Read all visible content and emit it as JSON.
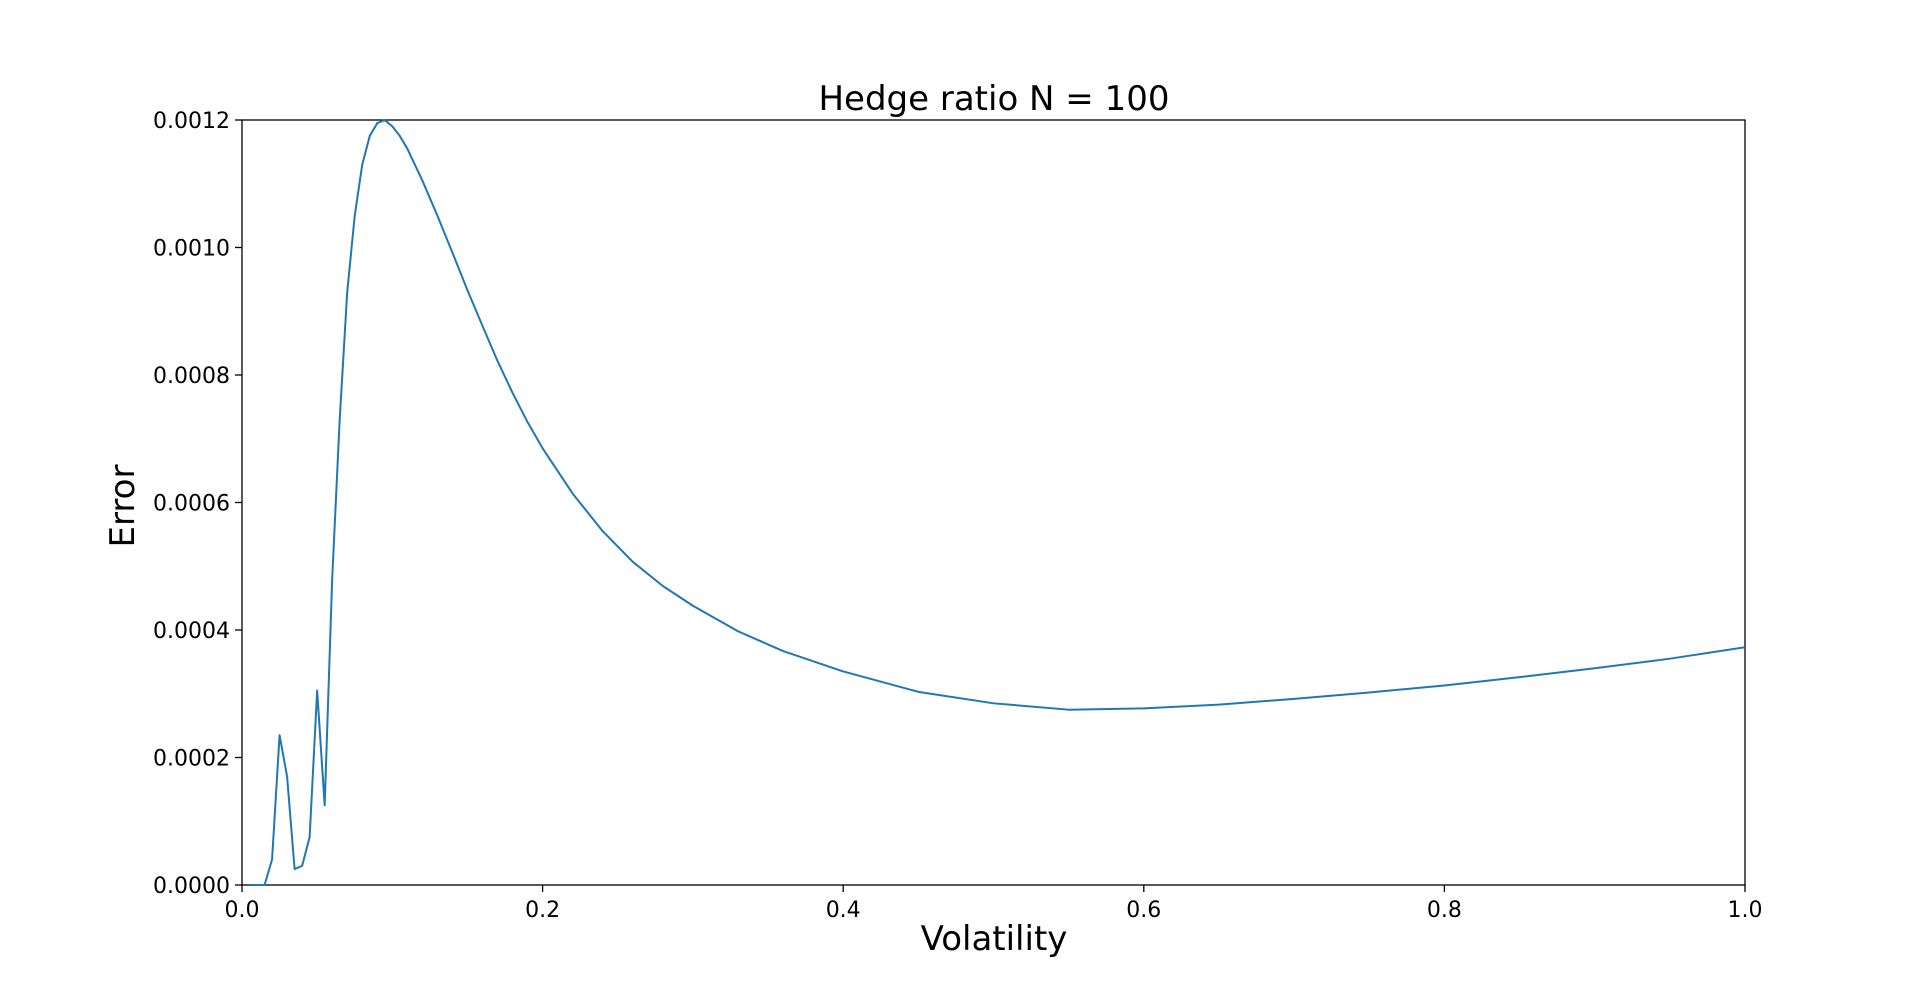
{
  "chart_data": {
    "type": "line",
    "title": "Hedge ratio N = 100",
    "xlabel": "Volatility",
    "ylabel": "Error",
    "xlim": [
      0.0,
      1.0
    ],
    "ylim": [
      0.0,
      0.0012
    ],
    "x_ticks": [
      "0.0",
      "0.2",
      "0.4",
      "0.6",
      "0.8",
      "1.0"
    ],
    "y_ticks": [
      "0.0000",
      "0.0002",
      "0.0004",
      "0.0006",
      "0.0008",
      "0.0010",
      "0.0012"
    ],
    "grid": false,
    "series": [
      {
        "color": "#1f77b4",
        "x": [
          0.005,
          0.01,
          0.015,
          0.02,
          0.025,
          0.03,
          0.035,
          0.04,
          0.045,
          0.05,
          0.055,
          0.06,
          0.065,
          0.07,
          0.075,
          0.08,
          0.085,
          0.09,
          0.095,
          0.1,
          0.105,
          0.11,
          0.12,
          0.13,
          0.14,
          0.15,
          0.16,
          0.17,
          0.18,
          0.19,
          0.2,
          0.22,
          0.24,
          0.26,
          0.28,
          0.3,
          0.33,
          0.36,
          0.4,
          0.45,
          0.5,
          0.55,
          0.6,
          0.65,
          0.7,
          0.75,
          0.8,
          0.85,
          0.9,
          0.95,
          1.0
        ],
        "y": [
          0.0,
          0.0,
          0.0,
          4e-05,
          0.000235,
          0.00017,
          2.5e-05,
          3e-05,
          7.5e-05,
          0.000305,
          0.000125,
          0.00048,
          0.00073,
          0.00093,
          0.00105,
          0.00113,
          0.001175,
          0.001195,
          0.0012,
          0.00119,
          0.001175,
          0.001155,
          0.001105,
          0.00105,
          0.000992,
          0.000933,
          0.000877,
          0.000822,
          0.000772,
          0.000726,
          0.000685,
          0.000614,
          0.000555,
          0.000507,
          0.000469,
          0.000438,
          0.000398,
          0.000367,
          0.000335,
          0.000303,
          0.000285,
          0.000275,
          0.000277,
          0.000283,
          0.000292,
          0.000302,
          0.000313,
          0.000326,
          0.00034,
          0.000355,
          0.000373
        ]
      }
    ]
  }
}
